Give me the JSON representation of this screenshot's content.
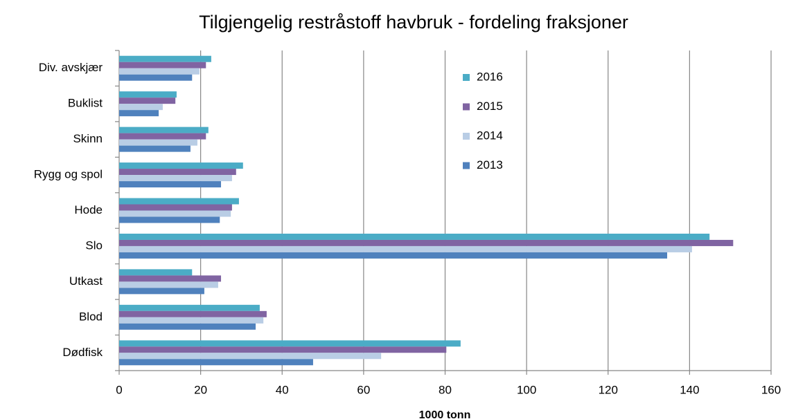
{
  "chart_data": {
    "type": "bar",
    "orientation": "horizontal",
    "title": "Tilgjengelig restråstoff havbruk - fordeling fraksjoner",
    "x_label": "1000 tonn",
    "categories": [
      "Dødfisk",
      "Blod",
      "Utkast",
      "Slo",
      "Hode",
      "Rygg og spol",
      "Skinn",
      "Buklist",
      "Div. avskjær"
    ],
    "series": [
      {
        "name": "2016",
        "color": "#4bacc6",
        "values": [
          83.8,
          34.5,
          17.9,
          144.9,
          29.4,
          30.4,
          21.9,
          14.1,
          22.6
        ]
      },
      {
        "name": "2015",
        "color": "#8064a2",
        "values": [
          80.3,
          36.2,
          25.0,
          150.7,
          27.7,
          28.7,
          21.3,
          13.8,
          21.3
        ]
      },
      {
        "name": "2014",
        "color": "#b9cde5",
        "values": [
          64.3,
          35.4,
          24.3,
          140.6,
          27.4,
          27.7,
          19.2,
          10.7,
          19.7
        ]
      },
      {
        "name": "2013",
        "color": "#4f81bd",
        "values": [
          47.6,
          33.5,
          20.9,
          134.5,
          24.7,
          25.0,
          17.5,
          9.7,
          17.9
        ]
      }
    ],
    "xlim": [
      0,
      160
    ],
    "xticks": [
      0,
      20,
      40,
      60,
      80,
      100,
      120,
      140,
      160
    ],
    "grid": true,
    "legend": "upper center"
  }
}
